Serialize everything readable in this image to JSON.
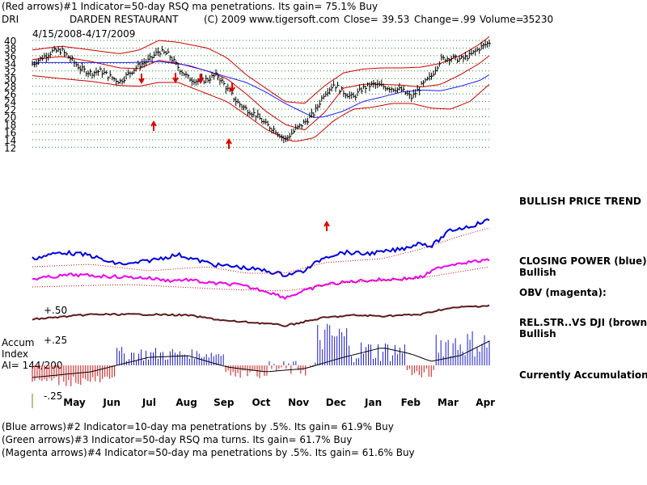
{
  "header": {
    "line1": "(Red arrows)#1 Indicator=50-day RSQ ma penetrations. Its gain= 75.1% Buy",
    "ticker": "DRI",
    "company": "DARDEN RESTAURANT",
    "copyright": "(C) 2009 www.tigersoft.com",
    "close_label": "Close=",
    "close_value": "39.53",
    "change_label": "Change=",
    "change_value": ".99",
    "volume_label": "Volume=",
    "volume_value": "35230",
    "date_range": "4/15/2008-4/17/2009"
  },
  "side_labels": {
    "price_trend": "BULLISH PRICE TREND",
    "closing_power_1": "CLOSING POWER (blue):",
    "closing_power_2": "Bullish",
    "obv": "OBV (magenta):",
    "relstr_1": "REL.STR..VS DJI (brown):",
    "relstr_2": "Bullish",
    "accum": "Currently Accumulation"
  },
  "accum_labels": {
    "title1": "Accum",
    "title2": "Index",
    "ai": "AI= 144/200",
    "top": "+.50",
    "mid": "+.25",
    "bottom": "-.25"
  },
  "footer": {
    "line1": "(Blue arrows)#2 Indicator=10-day ma penetrations by .5%. Its gain= 61.9% Buy",
    "line2": "(Green arrows)#3 Indicator=50-day RSQ ma turns. Its gain= 61.7% Buy",
    "line3": "(Magenta arrows)#4 Indicator=50-day ma penetrations by .5%. Its gain= 61.6% Buy"
  },
  "colors": {
    "price": "#000000",
    "upper_band": "#cc0000",
    "ma": "#cc0000",
    "lower_band": "#cc0000",
    "ma50": "#1a1aff",
    "closing_power": "#0000dd",
    "obv": "#ee00ee",
    "relstr": "#5a1a1a",
    "accum_pos": "#1a1acc",
    "accum_neg": "#cc1111",
    "gridline": "#1a8a1a",
    "arrows": "#dd0000"
  },
  "chart_data": {
    "type": "line",
    "y_ticks": [
      12,
      14,
      16,
      18,
      20,
      22,
      24,
      26,
      28,
      30,
      32,
      34,
      36,
      38,
      40
    ],
    "ylim": [
      11,
      41
    ],
    "x_months": [
      "May",
      "Jun",
      "Jul",
      "Aug",
      "Sep",
      "Oct",
      "Nov",
      "Dec",
      "Jan",
      "Feb",
      "Mar",
      "Apr"
    ],
    "grid": true,
    "series": [
      {
        "name": "price",
        "points": [
          [
            0,
            33.8
          ],
          [
            1,
            35.5
          ],
          [
            2,
            37.0
          ],
          [
            3,
            37.4
          ],
          [
            4,
            35.0
          ],
          [
            5,
            32.5
          ],
          [
            6,
            31.5
          ],
          [
            7,
            32.0
          ],
          [
            8,
            30.5
          ],
          [
            9,
            29.2
          ],
          [
            10,
            31.5
          ],
          [
            11,
            33.5
          ],
          [
            12,
            34.8
          ],
          [
            13,
            37.2
          ],
          [
            14,
            36.3
          ],
          [
            15,
            33.0
          ],
          [
            16,
            30.2
          ],
          [
            17,
            29.3
          ],
          [
            18,
            29.8
          ],
          [
            19,
            31.0
          ],
          [
            20,
            27.5
          ],
          [
            21,
            24.0
          ],
          [
            22,
            22.0
          ],
          [
            23,
            20.5
          ],
          [
            24,
            18.0
          ],
          [
            25,
            16.5
          ],
          [
            26,
            14.0
          ],
          [
            27,
            16.5
          ],
          [
            28,
            18.5
          ],
          [
            29,
            21.0
          ],
          [
            30,
            26.0
          ],
          [
            31,
            28.5
          ],
          [
            32,
            26.5
          ],
          [
            33,
            25.0
          ],
          [
            34,
            27.5
          ],
          [
            35,
            28.5
          ],
          [
            36,
            28.0
          ],
          [
            37,
            27.5
          ],
          [
            38,
            27.0
          ],
          [
            39,
            25.0
          ],
          [
            40,
            28.0
          ],
          [
            41,
            30.5
          ],
          [
            42,
            35.0
          ],
          [
            43,
            35.5
          ],
          [
            44,
            35.0
          ],
          [
            45,
            36.0
          ],
          [
            46,
            38.0
          ],
          [
            47,
            39.5
          ]
        ]
      },
      {
        "name": "upper band",
        "points": [
          [
            0,
            37.5
          ],
          [
            3,
            38.5
          ],
          [
            6,
            37.5
          ],
          [
            9,
            36.5
          ],
          [
            11,
            37.5
          ],
          [
            13,
            40.0
          ],
          [
            15,
            39.5
          ],
          [
            18,
            38.0
          ],
          [
            20,
            35.5
          ],
          [
            22,
            31.0
          ],
          [
            24,
            27.5
          ],
          [
            26,
            24.0
          ],
          [
            28,
            23.5
          ],
          [
            30,
            28.0
          ],
          [
            32,
            31.5
          ],
          [
            34,
            32.5
          ],
          [
            36,
            32.8
          ],
          [
            38,
            32.8
          ],
          [
            40,
            33.0
          ],
          [
            42,
            34.0
          ],
          [
            44,
            36.0
          ],
          [
            46,
            39.0
          ],
          [
            47,
            41.0
          ]
        ]
      },
      {
        "name": "ma",
        "points": [
          [
            0,
            35.0
          ],
          [
            3,
            35.8
          ],
          [
            6,
            34.5
          ],
          [
            9,
            32.8
          ],
          [
            11,
            32.6
          ],
          [
            13,
            34.8
          ],
          [
            15,
            34.0
          ],
          [
            18,
            32.0
          ],
          [
            20,
            30.0
          ],
          [
            22,
            26.0
          ],
          [
            24,
            21.5
          ],
          [
            26,
            18.0
          ],
          [
            28,
            16.5
          ],
          [
            30,
            21.0
          ],
          [
            32,
            27.5
          ],
          [
            34,
            28.5
          ],
          [
            36,
            28.5
          ],
          [
            38,
            28.3
          ],
          [
            40,
            27.8
          ],
          [
            42,
            28.5
          ],
          [
            44,
            31.0
          ],
          [
            46,
            34.0
          ],
          [
            47,
            36.0
          ]
        ]
      },
      {
        "name": "50-day ma",
        "points": [
          [
            10,
            34.2
          ],
          [
            13,
            34.5
          ],
          [
            16,
            33.5
          ],
          [
            19,
            31.2
          ],
          [
            22,
            29.0
          ],
          [
            24,
            26.5
          ],
          [
            26,
            23.5
          ],
          [
            28,
            21.0
          ],
          [
            29,
            19.8
          ],
          [
            30,
            20.0
          ],
          [
            32,
            21.5
          ],
          [
            34,
            24.0
          ],
          [
            36,
            25.2
          ],
          [
            38,
            26.5
          ],
          [
            40,
            27.0
          ],
          [
            42,
            26.8
          ],
          [
            44,
            28.0
          ],
          [
            46,
            29.5
          ],
          [
            47,
            31.0
          ]
        ]
      },
      {
        "name": "lower band",
        "points": [
          [
            0,
            30.8
          ],
          [
            3,
            30.0
          ],
          [
            6,
            29.3
          ],
          [
            9,
            28.2
          ],
          [
            11,
            28.0
          ],
          [
            13,
            29.0
          ],
          [
            15,
            29.0
          ],
          [
            18,
            26.0
          ],
          [
            20,
            24.0
          ],
          [
            22,
            20.5
          ],
          [
            24,
            16.8
          ],
          [
            26,
            14.2
          ],
          [
            27,
            13.5
          ],
          [
            29,
            14.5
          ],
          [
            31,
            19.0
          ],
          [
            33,
            22.0
          ],
          [
            35,
            22.5
          ],
          [
            37,
            23.5
          ],
          [
            39,
            23.5
          ],
          [
            41,
            22.3
          ],
          [
            43,
            22.0
          ],
          [
            45,
            24.0
          ],
          [
            47,
            28.5
          ]
        ]
      }
    ]
  }
}
